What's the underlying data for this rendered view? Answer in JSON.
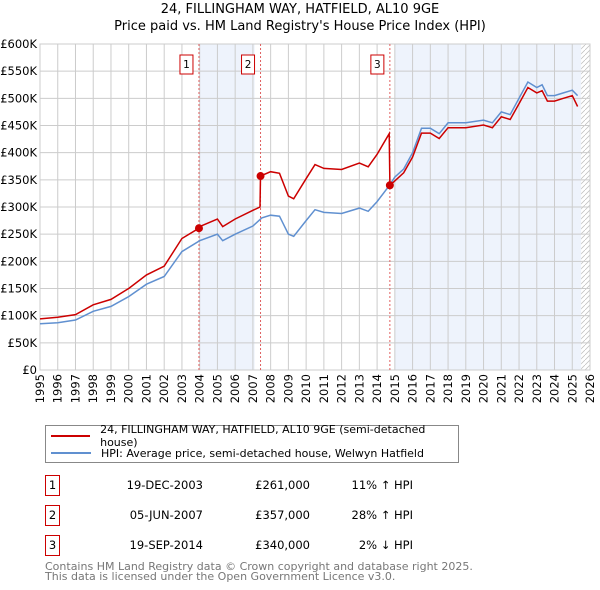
{
  "chart_data": {
    "type": "line",
    "title": "24, FILLINGHAM WAY, HATFIELD, AL10 9GE",
    "subtitle": "Price paid vs. HM Land Registry's House Price Index (HPI)",
    "xlim": [
      1995,
      2026
    ],
    "ylim": [
      0,
      600000
    ],
    "x_ticks": [
      "1995",
      "1996",
      "1997",
      "1998",
      "1999",
      "2000",
      "2001",
      "2002",
      "2003",
      "2004",
      "2005",
      "2006",
      "2007",
      "2008",
      "2009",
      "2010",
      "2011",
      "2012",
      "2013",
      "2014",
      "2015",
      "2016",
      "2017",
      "2018",
      "2019",
      "2020",
      "2021",
      "2022",
      "2023",
      "2024",
      "2025",
      "2026"
    ],
    "y_ticks": [
      "£0",
      "£50K",
      "£100K",
      "£150K",
      "£200K",
      "£250K",
      "£300K",
      "£350K",
      "£400K",
      "£450K",
      "£500K",
      "£550K",
      "£600K"
    ],
    "grid": true,
    "series": [
      {
        "name": "24, FILLINGHAM WAY, HATFIELD, AL10 9GE (semi-detached house)",
        "color": "#cc0000",
        "x": [
          1995,
          1996,
          1997,
          1998,
          1999,
          2000,
          2001,
          2002,
          2003,
          2003.96,
          2004,
          2005,
          2005.3,
          2006,
          2007,
          2007.4,
          2007.43,
          2008,
          2008.5,
          2009,
          2009.3,
          2010,
          2010.5,
          2011,
          2012,
          2013,
          2013.5,
          2014,
          2014.68,
          2014.72,
          2015,
          2015.5,
          2016,
          2016.5,
          2017,
          2017.5,
          2018,
          2019,
          2020,
          2020.5,
          2021,
          2021.5,
          2022,
          2022.5,
          2023,
          2023.3,
          2023.6,
          2024,
          2024.5,
          2025,
          2025.3
        ],
        "y": [
          94,
          97,
          102,
          120,
          130,
          150,
          175,
          191,
          242,
          261,
          264,
          278,
          264,
          278,
          294,
          300,
          357,
          365,
          362,
          320,
          315,
          352,
          378,
          371,
          369,
          381,
          374,
          397,
          435,
          340,
          348,
          363,
          392,
          436,
          436,
          426,
          446,
          446,
          451,
          446,
          466,
          461,
          490,
          520,
          510,
          514,
          495,
          495,
          500,
          505,
          485
        ]
      },
      {
        "name": "HPI: Average price, semi-detached house, Welwyn Hatfield",
        "color": "#6090d0",
        "x": [
          1995,
          1996,
          1997,
          1998,
          1999,
          2000,
          2001,
          2002,
          2003,
          2004,
          2005,
          2005.3,
          2006,
          2007,
          2007.5,
          2008,
          2008.5,
          2009,
          2009.3,
          2010,
          2010.5,
          2011,
          2012,
          2013,
          2013.5,
          2014,
          2014.7,
          2015,
          2015.5,
          2016,
          2016.5,
          2017,
          2017.5,
          2018,
          2019,
          2020,
          2020.5,
          2021,
          2021.5,
          2022,
          2022.5,
          2023,
          2023.3,
          2023.6,
          2024,
          2024.5,
          2025,
          2025.3
        ],
        "y": [
          85,
          87,
          92,
          108,
          117,
          135,
          158,
          172,
          218,
          238,
          250,
          238,
          250,
          265,
          280,
          285,
          283,
          250,
          246,
          275,
          295,
          290,
          288,
          298,
          292,
          310,
          340,
          355,
          370,
          400,
          445,
          445,
          435,
          455,
          455,
          460,
          455,
          475,
          470,
          500,
          530,
          520,
          525,
          505,
          505,
          510,
          515,
          505
        ]
      }
    ],
    "y_units": "thousands GBP",
    "sales": [
      {
        "label": "1",
        "x": 2003.96,
        "y": 261
      },
      {
        "label": "2",
        "x": 2007.43,
        "y": 357
      },
      {
        "label": "3",
        "x": 2014.72,
        "y": 340
      }
    ],
    "shaded": [
      [
        2003.96,
        2007.1
      ],
      [
        2015.0,
        2025.5
      ]
    ],
    "forecast_start": 2025.5
  },
  "legend": {
    "property": "24, FILLINGHAM WAY, HATFIELD, AL10 9GE (semi-detached house)",
    "hpi": "HPI: Average price, semi-detached house, Welwyn Hatfield"
  },
  "transactions": [
    {
      "num": "1",
      "date": "19-DEC-2003",
      "price": "£261,000",
      "hpi": "11% ↑ HPI"
    },
    {
      "num": "2",
      "date": "05-JUN-2007",
      "price": "£357,000",
      "hpi": "28% ↑ HPI"
    },
    {
      "num": "3",
      "date": "19-SEP-2014",
      "price": "£340,000",
      "hpi": "2% ↓ HPI"
    }
  ],
  "footer": [
    "Contains HM Land Registry data © Crown copyright and database right 2025.",
    "This data is licensed under the Open Government Licence v3.0."
  ]
}
